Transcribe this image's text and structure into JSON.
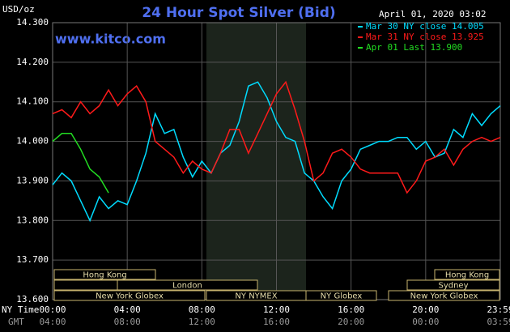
{
  "chart_data": {
    "type": "line",
    "title": "24 Hour Spot Silver (Bid)",
    "y_unit": "USD/oz",
    "source": "www.kitco.com",
    "timestamp": "April 01, 2020 03:02",
    "x_row_label": "NY Time",
    "x2_row_label": "GMT",
    "x": [
      0,
      0.5,
      1,
      1.5,
      2,
      2.5,
      3,
      3.5,
      4,
      4.5,
      5,
      5.5,
      6,
      6.5,
      7,
      7.5,
      8,
      8.5,
      9,
      9.5,
      10,
      10.5,
      11,
      11.5,
      12,
      12.5,
      13,
      13.5,
      14,
      14.5,
      15,
      15.5,
      16,
      16.5,
      17,
      17.5,
      18,
      18.5,
      19,
      19.5,
      20,
      20.5,
      21,
      21.5,
      22,
      22.5,
      23,
      23.5,
      24
    ],
    "series": [
      {
        "name": "Mar 30 NY close 14.005",
        "color": "#00dcff",
        "values": [
          13.89,
          13.92,
          13.9,
          13.85,
          13.8,
          13.86,
          13.83,
          13.85,
          13.84,
          13.9,
          13.97,
          14.07,
          14.02,
          14.03,
          13.96,
          13.91,
          13.95,
          13.92,
          13.97,
          13.99,
          14.05,
          14.14,
          14.15,
          14.11,
          14.05,
          14.01,
          14.0,
          13.92,
          13.9,
          13.86,
          13.83,
          13.9,
          13.93,
          13.98,
          13.99,
          14.0,
          14.0,
          14.01,
          14.01,
          13.98,
          14.0,
          13.96,
          13.97,
          14.03,
          14.01,
          14.07,
          14.04,
          14.07,
          14.09
        ]
      },
      {
        "name": "Mar 31 NY close 13.925",
        "color": "#ff1a1a",
        "values": [
          14.07,
          14.08,
          14.06,
          14.1,
          14.07,
          14.09,
          14.13,
          14.09,
          14.12,
          14.14,
          14.1,
          14.0,
          13.98,
          13.96,
          13.92,
          13.95,
          13.93,
          13.92,
          13.97,
          14.03,
          14.03,
          13.97,
          14.02,
          14.07,
          14.12,
          14.15,
          14.08,
          14.0,
          13.9,
          13.92,
          13.97,
          13.98,
          13.96,
          13.93,
          13.92,
          13.92,
          13.92,
          13.92,
          13.87,
          13.9,
          13.95,
          13.96,
          13.98,
          13.94,
          13.98,
          14.0,
          14.01,
          14.0,
          14.01
        ]
      },
      {
        "name": "Apr 01 Last 13.900",
        "color": "#22dd22",
        "values": [
          14.0,
          14.02,
          14.02,
          13.98,
          13.93,
          13.91,
          13.87,
          null,
          null,
          null,
          null,
          null,
          null,
          null,
          null,
          null,
          null,
          null,
          null,
          null,
          null,
          null,
          null,
          null,
          null,
          null,
          null,
          null,
          null,
          null,
          null,
          null,
          null,
          null,
          null,
          null,
          null,
          null,
          null,
          null,
          null,
          null,
          null,
          null,
          null,
          null,
          null,
          null,
          null
        ]
      }
    ],
    "xlim": [
      0,
      24
    ],
    "xticks": [
      {
        "value": 0,
        "label": "00:00"
      },
      {
        "value": 4,
        "label": "04:00"
      },
      {
        "value": 8,
        "label": "08:00"
      },
      {
        "value": 12,
        "label": "12:00"
      },
      {
        "value": 16,
        "label": "16:00"
      },
      {
        "value": 20,
        "label": "20:00"
      },
      {
        "value": 24,
        "label": "23:59"
      }
    ],
    "x2_labels": [
      "04:00",
      "08:00",
      "12:00",
      "16:00",
      "20:00",
      "00:00",
      "03:59"
    ],
    "ylim": [
      13.6,
      14.3
    ],
    "yticks": [
      {
        "value": 13.6,
        "label": "13.600"
      },
      {
        "value": 13.7,
        "label": "13.700"
      },
      {
        "value": 13.8,
        "label": "13.800"
      },
      {
        "value": 13.9,
        "label": "13.900"
      },
      {
        "value": 14.0,
        "label": "14.000"
      },
      {
        "value": 14.1,
        "label": "14.100"
      },
      {
        "value": 14.2,
        "label": "14.200"
      },
      {
        "value": 14.3,
        "label": "14.300"
      }
    ],
    "grid": true,
    "sessions": [
      "Hong Kong",
      "Hong Kong",
      "London",
      "Sydney",
      "New York Globex",
      "NY NYMEX",
      "NY Globex",
      "New York Globex"
    ]
  }
}
